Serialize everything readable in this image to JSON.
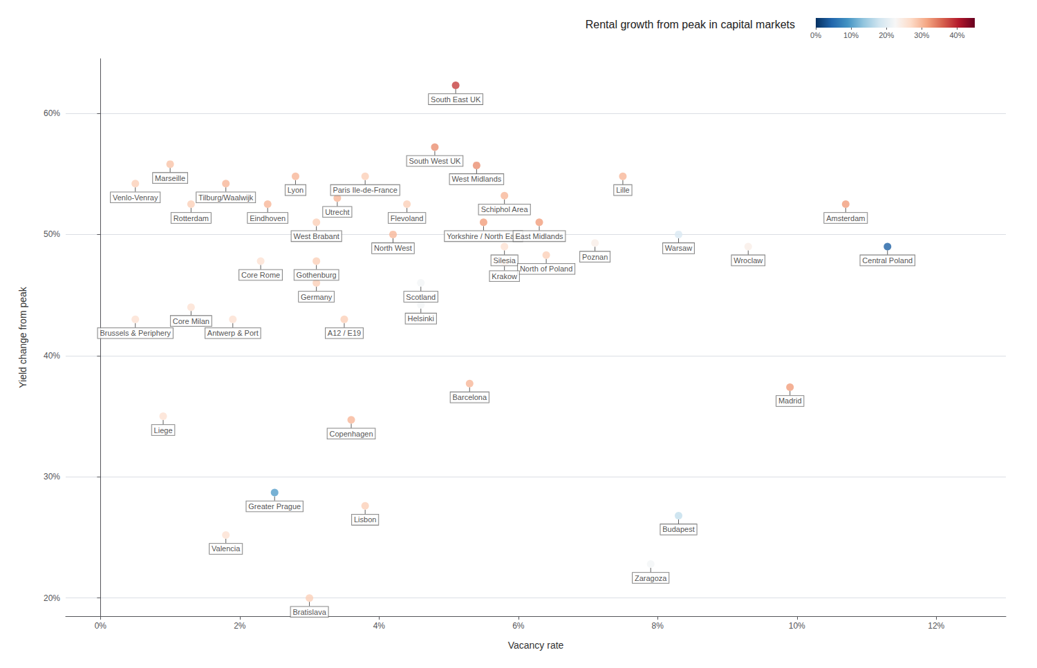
{
  "chart_data": {
    "type": "scatter",
    "title": "Rental growth from peak in capital markets",
    "xlabel": "Vacancy rate",
    "ylabel": "Yield change from peak",
    "xlim": [
      -0.005,
      0.13
    ],
    "ylim": [
      0.185,
      0.645
    ],
    "xticks": [
      {
        "value": 0.0,
        "label": "0%"
      },
      {
        "value": 0.02,
        "label": "2%"
      },
      {
        "value": 0.04,
        "label": "4%"
      },
      {
        "value": 0.06,
        "label": "6%"
      },
      {
        "value": 0.08,
        "label": "8%"
      },
      {
        "value": 0.1,
        "label": "10%"
      },
      {
        "value": 0.12,
        "label": "12%"
      }
    ],
    "yticks": [
      {
        "value": 0.2,
        "label": "20%"
      },
      {
        "value": 0.3,
        "label": "30%"
      },
      {
        "value": 0.4,
        "label": "40%"
      },
      {
        "value": 0.5,
        "label": "50%"
      },
      {
        "value": 0.6,
        "label": "60%"
      }
    ],
    "grid": "y",
    "points": [
      {
        "label": "South East UK",
        "x": 0.051,
        "y": 0.623,
        "rental": 0.38
      },
      {
        "label": "South West UK",
        "x": 0.048,
        "y": 0.572,
        "rental": 0.33
      },
      {
        "label": "West Midlands",
        "x": 0.054,
        "y": 0.557,
        "rental": 0.33
      },
      {
        "label": "Schiphol Area",
        "x": 0.058,
        "y": 0.532,
        "rental": 0.3
      },
      {
        "label": "Paris Ile-de-France",
        "x": 0.038,
        "y": 0.548,
        "rental": 0.28
      },
      {
        "label": "Flevoland",
        "x": 0.044,
        "y": 0.525,
        "rental": 0.28
      },
      {
        "label": "Lyon",
        "x": 0.028,
        "y": 0.548,
        "rental": 0.3
      },
      {
        "label": "Marseille",
        "x": 0.01,
        "y": 0.558,
        "rental": 0.29
      },
      {
        "label": "Venlo-Venray",
        "x": 0.005,
        "y": 0.542,
        "rental": 0.28
      },
      {
        "label": "Tilburg/Waalwijk",
        "x": 0.018,
        "y": 0.542,
        "rental": 0.3
      },
      {
        "label": "Utrecht",
        "x": 0.034,
        "y": 0.53,
        "rental": 0.3
      },
      {
        "label": "Rotterdam",
        "x": 0.013,
        "y": 0.525,
        "rental": 0.28
      },
      {
        "label": "Eindhoven",
        "x": 0.024,
        "y": 0.525,
        "rental": 0.3
      },
      {
        "label": "West Brabant",
        "x": 0.031,
        "y": 0.51,
        "rental": 0.28
      },
      {
        "label": "Yorkshire / North East",
        "x": 0.055,
        "y": 0.51,
        "rental": 0.32
      },
      {
        "label": "East Midlands",
        "x": 0.063,
        "y": 0.51,
        "rental": 0.32
      },
      {
        "label": "Lille",
        "x": 0.075,
        "y": 0.548,
        "rental": 0.3
      },
      {
        "label": "Amsterdam",
        "x": 0.107,
        "y": 0.525,
        "rental": 0.32
      },
      {
        "label": "Warsaw",
        "x": 0.083,
        "y": 0.5,
        "rental": 0.19
      },
      {
        "label": "Wroclaw",
        "x": 0.093,
        "y": 0.49,
        "rental": 0.24
      },
      {
        "label": "Central Poland",
        "x": 0.113,
        "y": 0.49,
        "rental": 0.04
      },
      {
        "label": "Poznan",
        "x": 0.071,
        "y": 0.493,
        "rental": 0.24
      },
      {
        "label": "Silesia",
        "x": 0.058,
        "y": 0.49,
        "rental": 0.26
      },
      {
        "label": "North of Poland",
        "x": 0.064,
        "y": 0.483,
        "rental": 0.28
      },
      {
        "label": "Krakow",
        "x": 0.058,
        "y": 0.477,
        "rental": 0.28
      },
      {
        "label": "Gothenburg",
        "x": 0.031,
        "y": 0.478,
        "rental": 0.28
      },
      {
        "label": "North West",
        "x": 0.042,
        "y": 0.5,
        "rental": 0.3
      },
      {
        "label": "Core Rome",
        "x": 0.023,
        "y": 0.478,
        "rental": 0.26
      },
      {
        "label": "Germany",
        "x": 0.031,
        "y": 0.46,
        "rental": 0.28
      },
      {
        "label": "Scotland",
        "x": 0.046,
        "y": 0.46,
        "rental": 0.22
      },
      {
        "label": "Helsinki",
        "x": 0.046,
        "y": 0.442,
        "rental": 0.22
      },
      {
        "label": "A12 / E19",
        "x": 0.035,
        "y": 0.43,
        "rental": 0.28
      },
      {
        "label": "Core Milan",
        "x": 0.013,
        "y": 0.44,
        "rental": 0.26
      },
      {
        "label": "Brussels & Periphery",
        "x": 0.005,
        "y": 0.43,
        "rental": 0.26
      },
      {
        "label": "Antwerp & Port",
        "x": 0.019,
        "y": 0.43,
        "rental": 0.26
      },
      {
        "label": "Barcelona",
        "x": 0.053,
        "y": 0.377,
        "rental": 0.3
      },
      {
        "label": "Madrid",
        "x": 0.099,
        "y": 0.374,
        "rental": 0.32
      },
      {
        "label": "Liege",
        "x": 0.009,
        "y": 0.35,
        "rental": 0.26
      },
      {
        "label": "Copenhagen",
        "x": 0.036,
        "y": 0.347,
        "rental": 0.3
      },
      {
        "label": "Greater Prague",
        "x": 0.025,
        "y": 0.287,
        "rental": 0.1
      },
      {
        "label": "Lisbon",
        "x": 0.038,
        "y": 0.276,
        "rental": 0.28
      },
      {
        "label": "Valencia",
        "x": 0.018,
        "y": 0.252,
        "rental": 0.26
      },
      {
        "label": "Budapest",
        "x": 0.083,
        "y": 0.268,
        "rental": 0.17
      },
      {
        "label": "Zaragoza",
        "x": 0.079,
        "y": 0.228,
        "rental": 0.22
      },
      {
        "label": "Bratislava",
        "x": 0.03,
        "y": 0.2,
        "rental": 0.28
      }
    ],
    "colorbar": {
      "range": [
        0.0,
        0.45
      ],
      "ticks": [
        {
          "value": 0.0,
          "label": "0%"
        },
        {
          "value": 0.1,
          "label": "10%"
        },
        {
          "value": 0.2,
          "label": "20%"
        },
        {
          "value": 0.3,
          "label": "30%"
        },
        {
          "value": 0.4,
          "label": "40%"
        }
      ]
    }
  }
}
